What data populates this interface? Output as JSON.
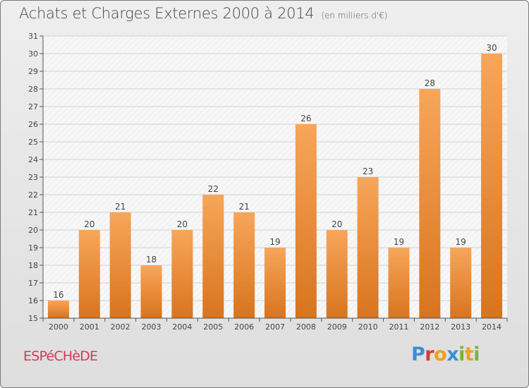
{
  "header": {
    "title": "Achats et Charges Externes 2000 à 2014",
    "subtitle": "(en milliers d'€)"
  },
  "footer": {
    "place_name": "ESPéCHèDE",
    "logo_text": "Proxiti"
  },
  "colors": {
    "bar_light": "#f7a65a",
    "bar_dark": "#d8741e",
    "logo_letters": [
      "#3a8fd6",
      "#d33a3a",
      "#f0a020",
      "#3a8fd6",
      "#7bb33a",
      "#f0a020",
      "#7bb33a"
    ]
  },
  "chart_data": {
    "type": "bar",
    "title": "Achats et Charges Externes 2000 à 2014",
    "unit": "(en milliers d'€)",
    "categories": [
      "2000",
      "2001",
      "2002",
      "2003",
      "2004",
      "2005",
      "2006",
      "2007",
      "2008",
      "2009",
      "2010",
      "2011",
      "2012",
      "2013",
      "2014"
    ],
    "values": [
      16,
      20,
      21,
      18,
      20,
      22,
      21,
      19,
      26,
      20,
      23,
      19,
      28,
      19,
      30
    ],
    "ylim": [
      15,
      31
    ],
    "yticks": [
      15,
      16,
      17,
      18,
      19,
      20,
      21,
      22,
      23,
      24,
      25,
      26,
      27,
      28,
      29,
      30,
      31
    ],
    "grid": true,
    "xlabel": "",
    "ylabel": ""
  }
}
